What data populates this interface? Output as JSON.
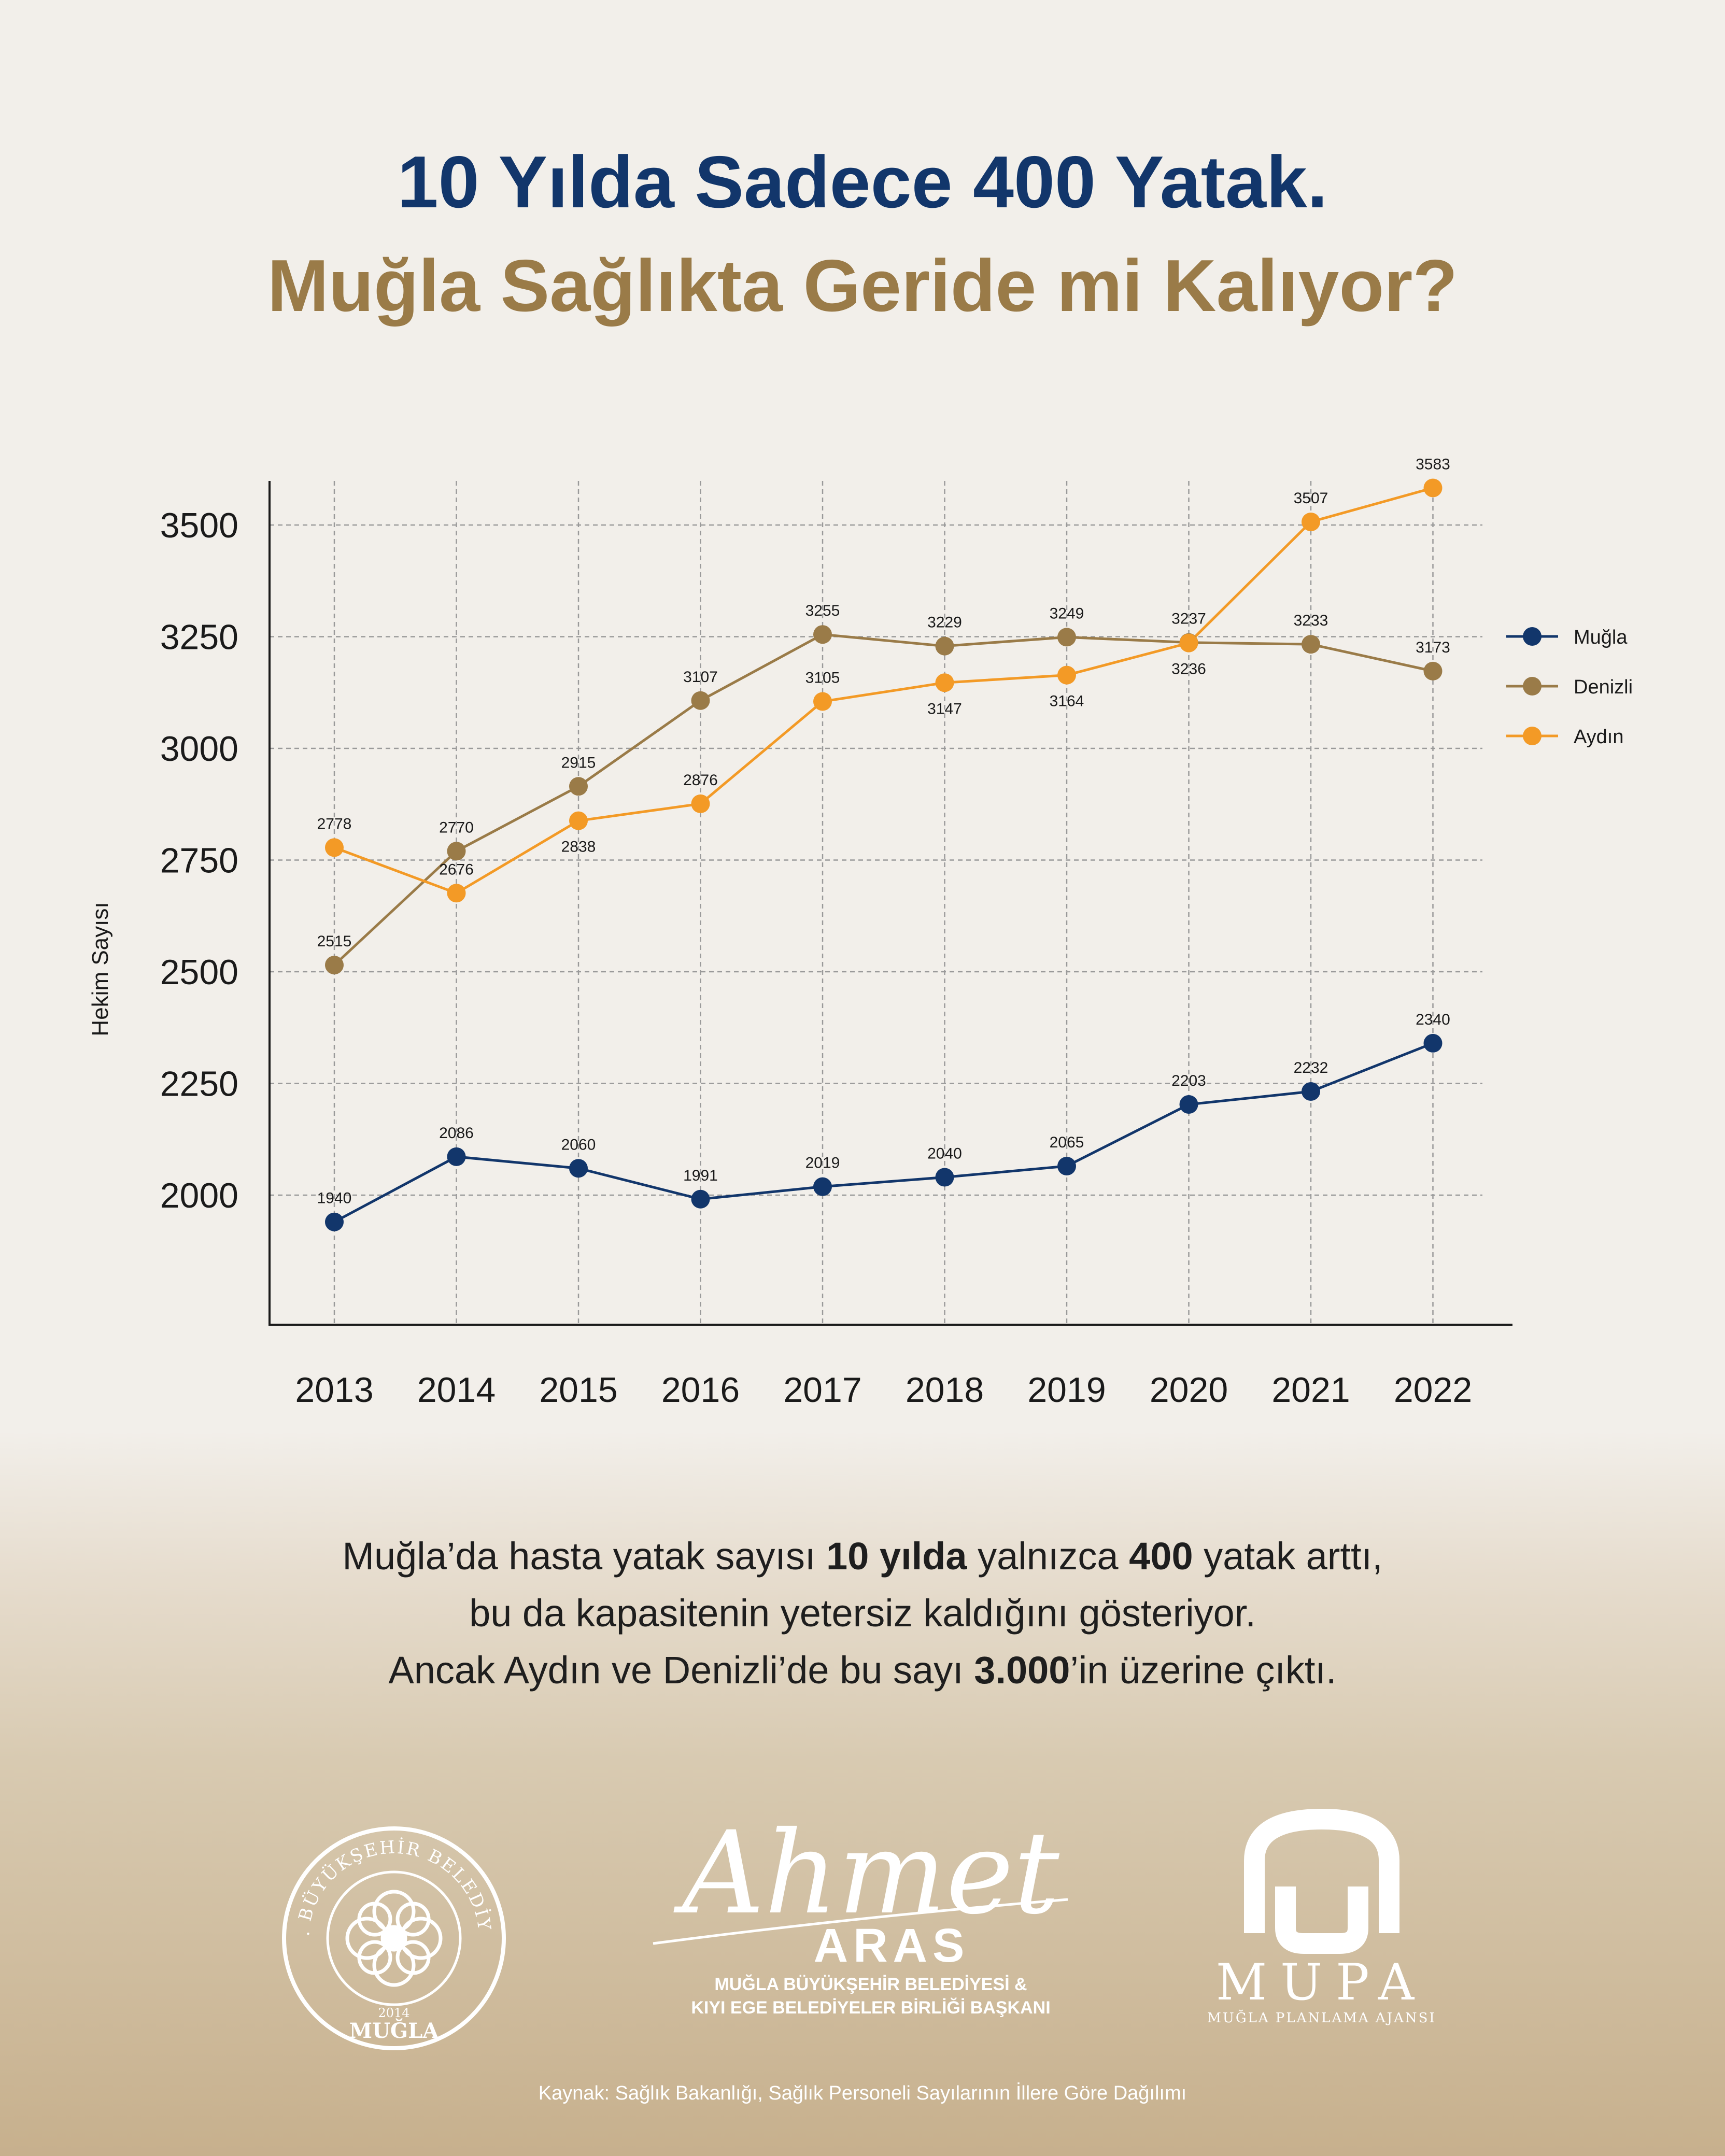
{
  "header": {
    "title_line1": "10 Yılda Sadece 400 Yatak.",
    "title_line2": "Muğla Sağlıkta Geride mi Kalıyor?"
  },
  "chart_data": {
    "type": "line",
    "title": "",
    "xlabel": "",
    "ylabel": "Hekim Sayısı",
    "categories": [
      "2013",
      "2014",
      "2015",
      "2016",
      "2017",
      "2018",
      "2019",
      "2020",
      "2021",
      "2022"
    ],
    "y_ticks": [
      2000,
      2250,
      2500,
      2750,
      3000,
      3250,
      3500
    ],
    "grid": true,
    "legend_position": "right",
    "series": [
      {
        "name": "Muğla",
        "color": "#12366b",
        "values": [
          1940,
          2086,
          2060,
          1991,
          2019,
          2040,
          2065,
          2203,
          2232,
          2340
        ]
      },
      {
        "name": "Denizli",
        "color": "#9a7b48",
        "values": [
          2515,
          2770,
          2915,
          3107,
          3255,
          3229,
          3249,
          3237,
          3233,
          3173
        ]
      },
      {
        "name": "Aydın",
        "color": "#f39a26",
        "values": [
          2778,
          2676,
          2838,
          2876,
          3105,
          3147,
          3164,
          3236,
          3507,
          3583
        ]
      }
    ]
  },
  "paragraph": {
    "l1a": "Muğla’da hasta yatak sayısı ",
    "l1b": "10 yılda",
    "l1c": " yalnızca ",
    "l1d": "400",
    "l1e": " yatak arttı,",
    "l2": "bu da kapasitenin yetersiz kaldığını gösteriyor.",
    "l3a": "Ancak Aydın ve Denizli’de bu sayı ",
    "l3b": "3.000",
    "l3c": "’in üzerine çıktı."
  },
  "logos": {
    "seal_text_top": "T.C. BÜYÜKŞEHİR BELEDİYESİ",
    "seal_year": "2014",
    "seal_city": "MUĞLA",
    "signature": "Ahmet",
    "aras_name": "ARAS",
    "aras_line1": "MUĞLA BÜYÜKŞEHİR BELEDİYESİ &",
    "aras_line2": "KIYI EGE BELEDİYELER BİRLİĞİ BAŞKANI",
    "mupa_name": "MUPA",
    "mupa_sub": "MUĞLA PLANLAMA AJANSI"
  },
  "footer": {
    "source": "Kaynak: Sağlık Bakanlığı, Sağlık Personeli Sayılarının İllere Göre Dağılımı"
  }
}
